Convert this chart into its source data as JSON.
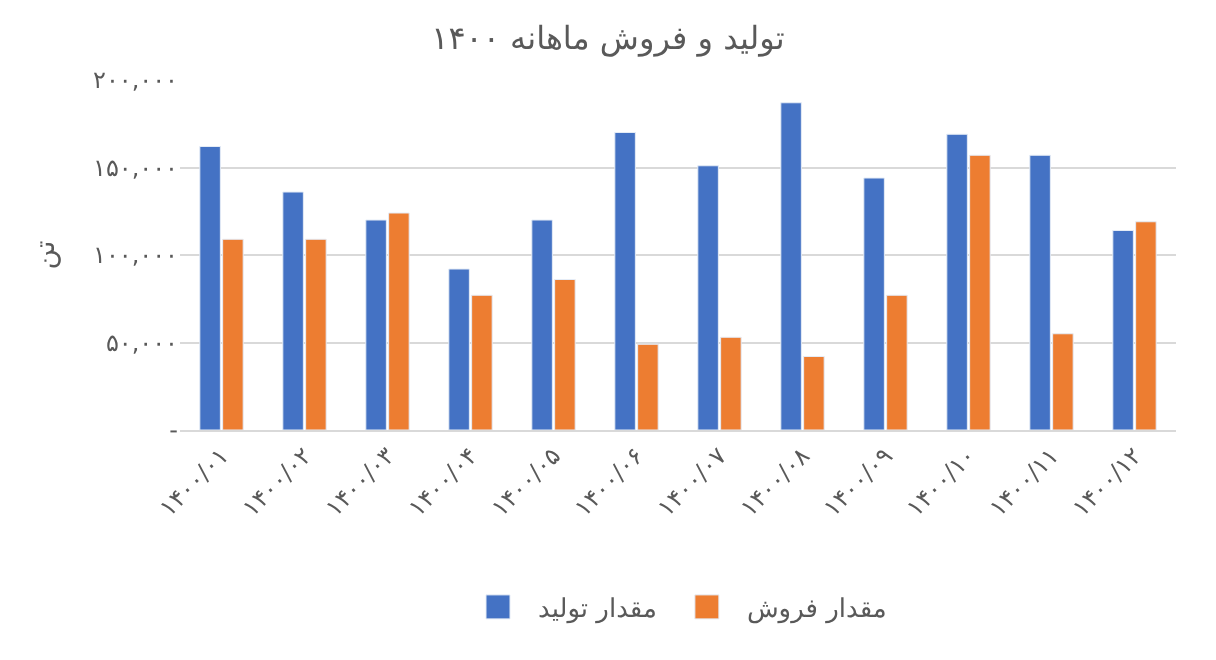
{
  "chart_data": {
    "type": "bar",
    "title": "تولید و فروش ماهانه ۱۴۰۰",
    "ylabel": "تن",
    "categories": [
      "۱۴۰۰/۰۱",
      "۱۴۰۰/۰۲",
      "۱۴۰۰/۰۳",
      "۱۴۰۰/۰۴",
      "۱۴۰۰/۰۵",
      "۱۴۰۰/۰۶",
      "۱۴۰۰/۰۷",
      "۱۴۰۰/۰۸",
      "۱۴۰۰/۰۹",
      "۱۴۰۰/۱۰",
      "۱۴۰۰/۱۱",
      "۱۴۰۰/۱۲"
    ],
    "series": [
      {
        "name": "مقدار تولید",
        "color": "#4472c4",
        "values": [
          162000,
          136000,
          120000,
          92000,
          120000,
          170000,
          151000,
          187000,
          144000,
          169000,
          157000,
          114000
        ]
      },
      {
        "name": "مقدار فروش",
        "color": "#ed7d31",
        "values": [
          109000,
          109000,
          124000,
          77000,
          86000,
          49000,
          53000,
          42000,
          77000,
          157000,
          55000,
          119000
        ]
      }
    ],
    "ylim": [
      0,
      200000
    ],
    "yticks": [
      {
        "value": 0,
        "label": "-"
      },
      {
        "value": 50000,
        "label": "۵۰,۰۰۰"
      },
      {
        "value": 100000,
        "label": "۱۰۰,۰۰۰"
      },
      {
        "value": 150000,
        "label": "۱۵۰,۰۰۰"
      },
      {
        "value": 200000,
        "label": "۲۰۰,۰۰۰"
      }
    ],
    "grid": "y",
    "legend": "bottom"
  }
}
